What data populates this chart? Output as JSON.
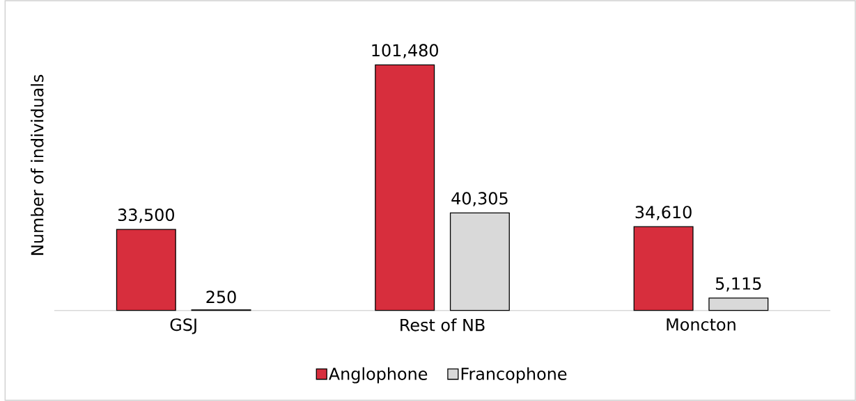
{
  "chart_data": {
    "type": "bar",
    "ylabel": "Number of individuals",
    "categories": [
      "GSJ",
      "Rest of NB",
      "Moncton"
    ],
    "series": [
      {
        "name": "Anglophone",
        "color": "#d72e3d",
        "values": [
          33500,
          101480,
          34610
        ],
        "value_labels": [
          "33,500",
          "101,480",
          "34,610"
        ]
      },
      {
        "name": "Francophone",
        "color": "#d9d9d9",
        "values": [
          250,
          40305,
          5115
        ],
        "value_labels": [
          "250",
          "40,305",
          "5,115"
        ]
      }
    ],
    "legend": "bottom",
    "tick_labels": "x"
  }
}
